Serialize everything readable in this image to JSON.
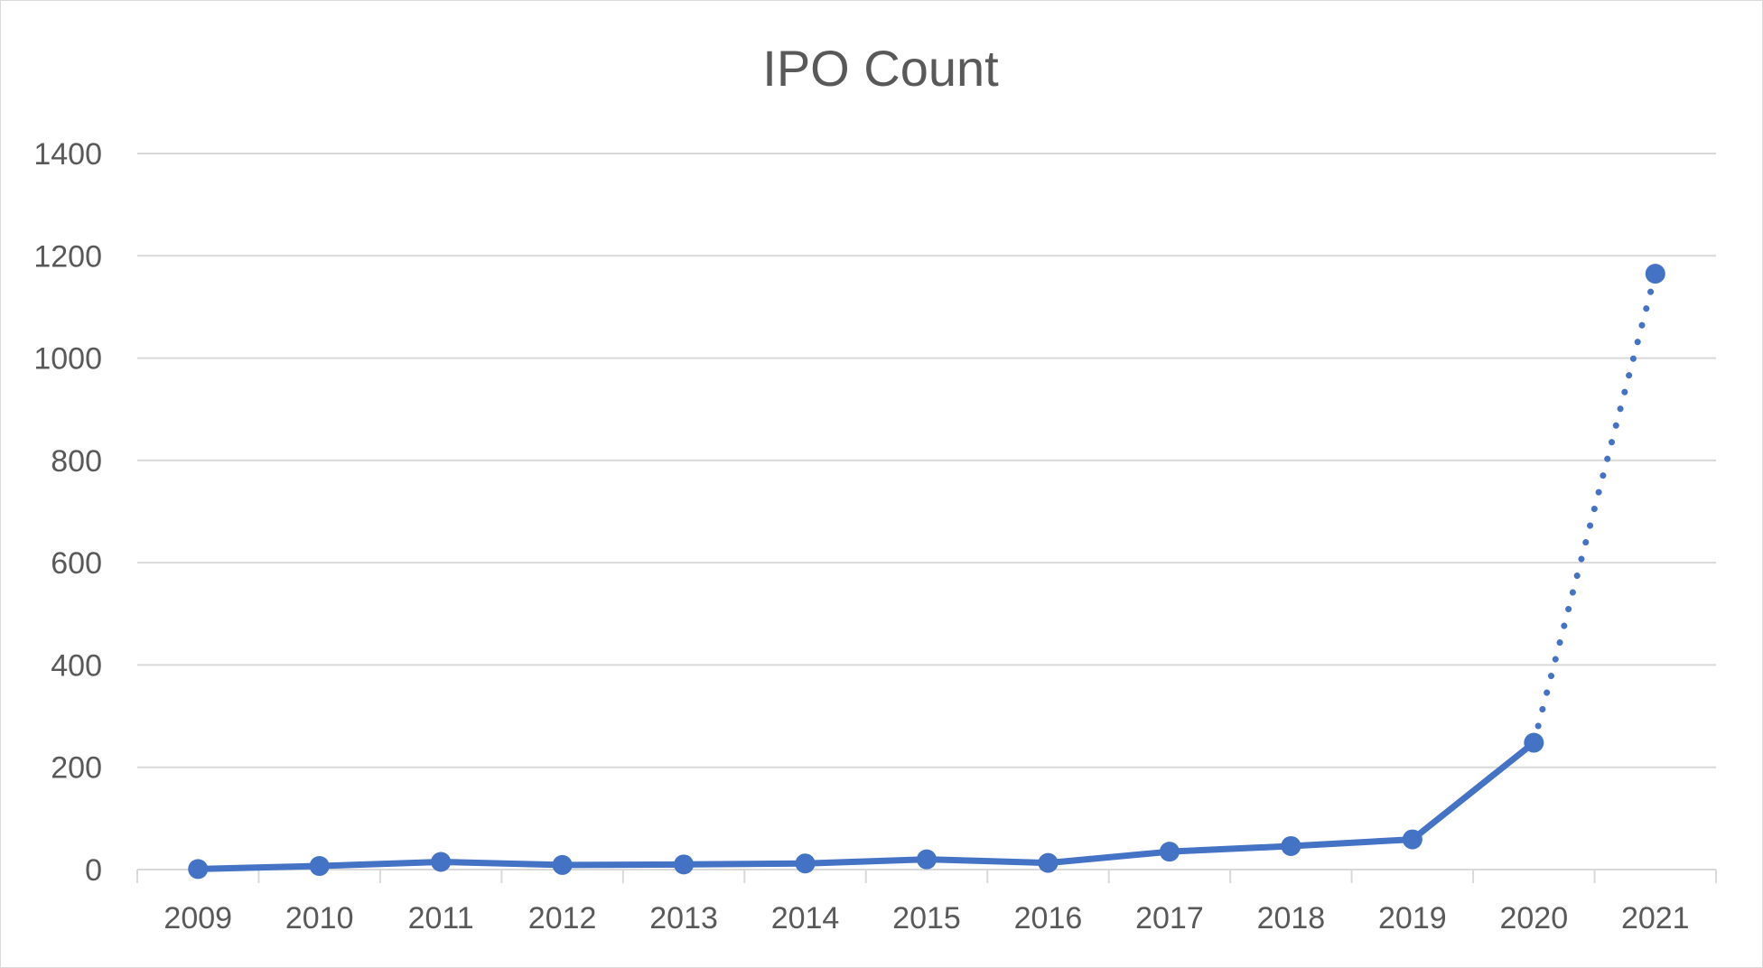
{
  "chart_data": {
    "type": "line",
    "title": "IPO Count",
    "xlabel": "",
    "ylabel": "",
    "categories": [
      "2009",
      "2010",
      "2011",
      "2012",
      "2013",
      "2014",
      "2015",
      "2016",
      "2017",
      "2018",
      "2019",
      "2020",
      "2021"
    ],
    "series": [
      {
        "name": "IPO Count",
        "values": [
          1,
          7,
          15,
          9,
          10,
          12,
          20,
          13,
          35,
          46,
          59,
          248,
          1165
        ],
        "solid_until_category": "2020",
        "dotted_segment": [
          "2020",
          "2021"
        ]
      }
    ],
    "ylim": [
      0,
      1400
    ],
    "yticks": [
      0,
      200,
      400,
      600,
      800,
      1000,
      1200,
      1400
    ],
    "grid": true,
    "legend": "none",
    "colors": {
      "series": "#4472c4",
      "grid": "#d9d9d9",
      "text": "#595959"
    }
  }
}
